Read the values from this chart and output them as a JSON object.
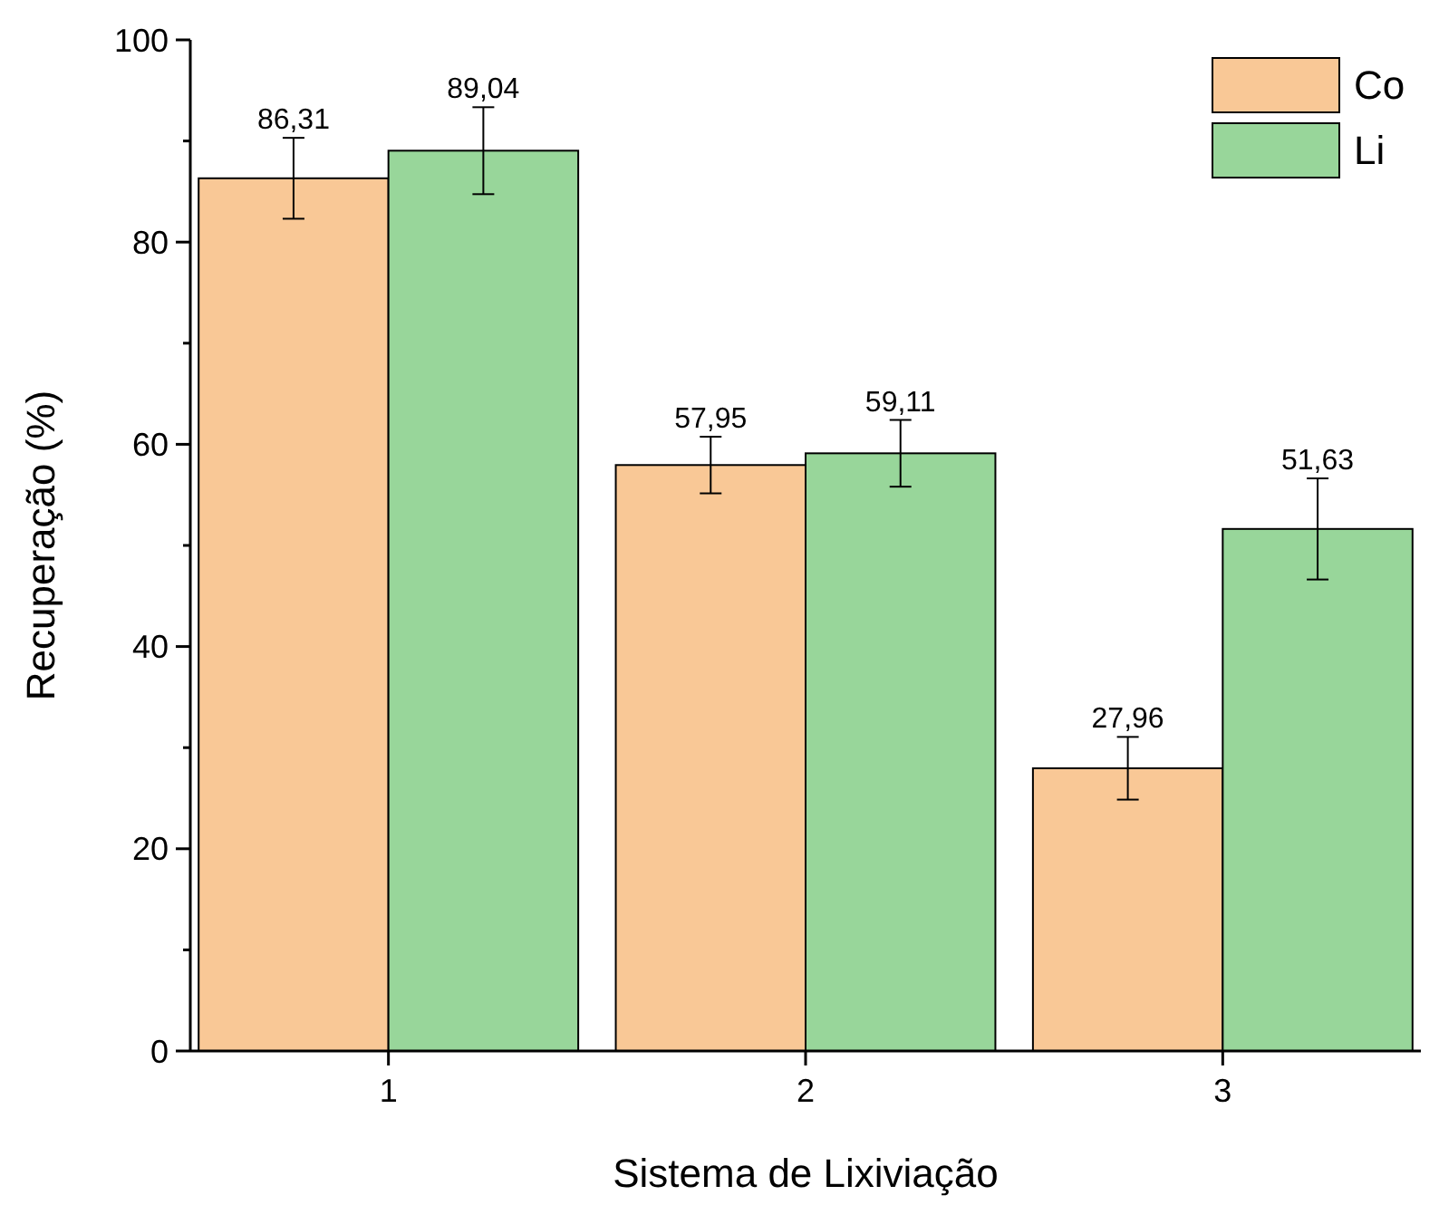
{
  "chart_data": {
    "type": "bar",
    "xlabel": "Sistema de Lixiviação",
    "ylabel": "Recuperação (%)",
    "categories": [
      "1",
      "2",
      "3"
    ],
    "series": [
      {
        "name": "Co",
        "color": "#f9c896",
        "values": [
          86.31,
          57.95,
          27.96
        ],
        "errors": [
          4,
          2.8,
          3.1
        ],
        "value_labels": [
          "86,31",
          "57,95",
          "27,96"
        ]
      },
      {
        "name": "Li",
        "color": "#98d69a",
        "values": [
          89.04,
          59.11,
          51.63
        ],
        "errors": [
          4.3,
          3.3,
          5
        ],
        "value_labels": [
          "89,04",
          "59,11",
          "51,63"
        ]
      }
    ],
    "ylim": [
      0,
      100
    ],
    "yticks": [
      0,
      {
        "value": 10,
        "label": null
      },
      20,
      {
        "value": 30,
        "label": null
      },
      40,
      {
        "value": 50,
        "label": null
      },
      60,
      {
        "value": 70,
        "label": null
      },
      80,
      {
        "value": 90,
        "label": null
      },
      100
    ],
    "grid": false,
    "legend": "top right"
  }
}
